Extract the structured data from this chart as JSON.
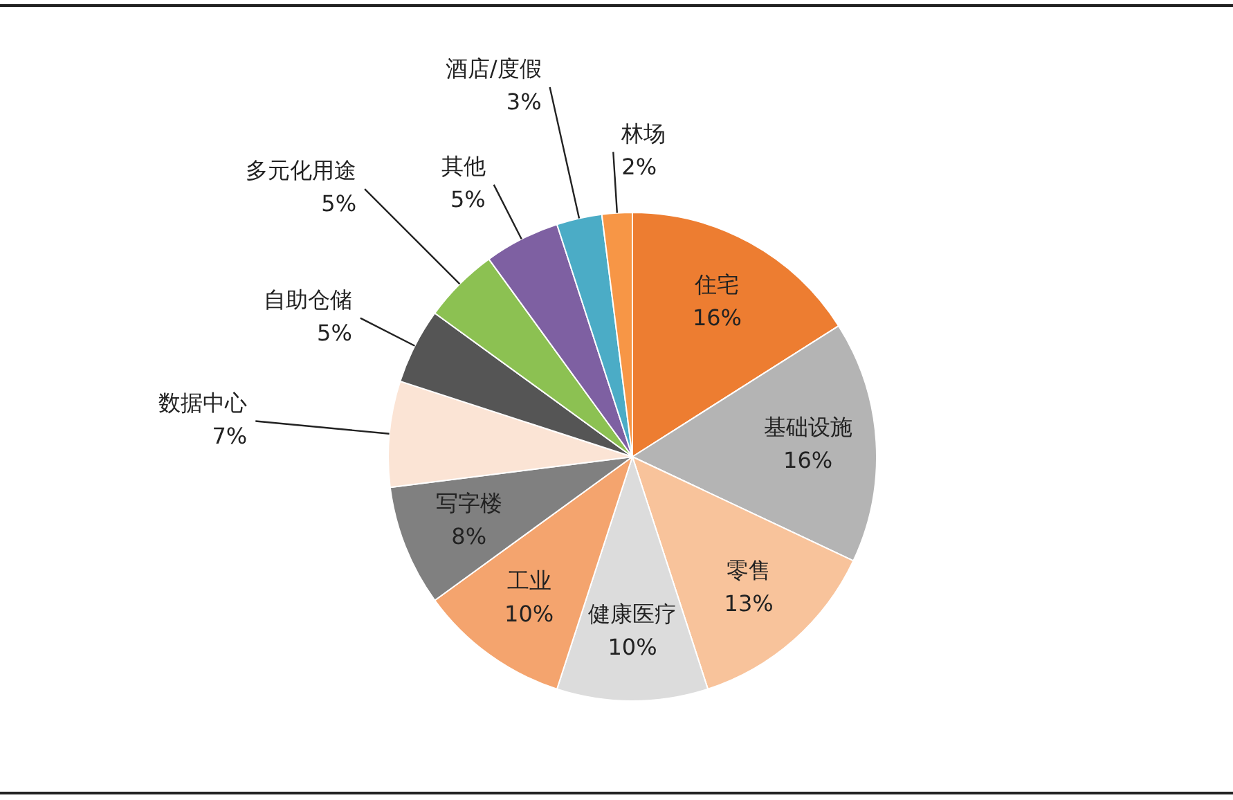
{
  "chart_data": {
    "type": "pie",
    "categories": [
      "住宅",
      "基础设施",
      "零售",
      "健康医疗",
      "工业",
      "写字楼",
      "数据中心",
      "自助仓储",
      "多元化用途",
      "其他",
      "酒店/度假",
      "林场"
    ],
    "values": [
      16,
      16,
      13,
      10,
      10,
      8,
      7,
      5,
      5,
      5,
      3,
      2
    ],
    "colors": [
      "#ed7d31",
      "#b4b4b4",
      "#f8c39b",
      "#dcdcdc",
      "#f4a46e",
      "#808080",
      "#fbe4d5",
      "#555555",
      "#8cc152",
      "#7e60a2",
      "#4bacc6",
      "#f79646"
    ],
    "value_labels": [
      "16%",
      "16%",
      "13%",
      "10%",
      "10%",
      "8%",
      "7%",
      "5%",
      "5%",
      "5%",
      "3%",
      "2%"
    ],
    "legend": false
  }
}
